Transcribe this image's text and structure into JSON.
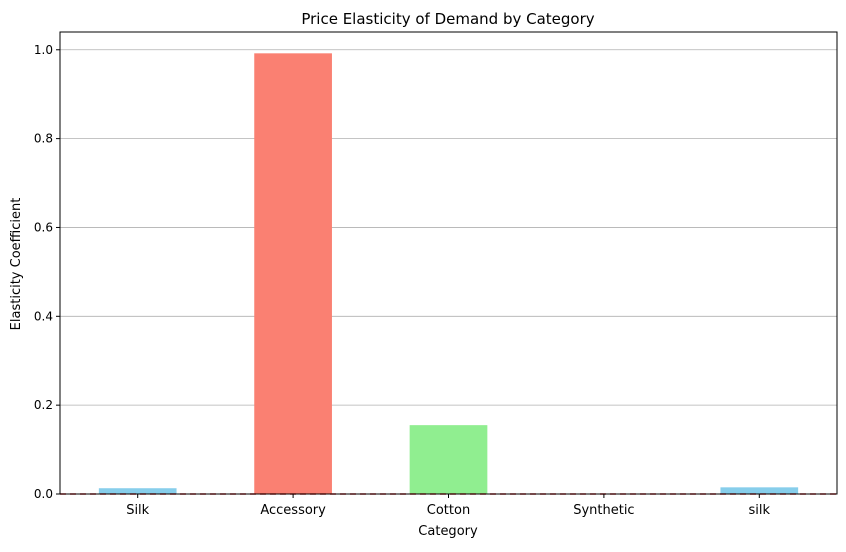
{
  "chart_data": {
    "type": "bar",
    "title": "Price Elasticity of Demand by Category",
    "xlabel": "Category",
    "ylabel": "Elasticity Coefficient",
    "categories": [
      "Silk",
      "Accessory",
      "Cotton",
      "Synthetic",
      "silk"
    ],
    "values": [
      0.013,
      0.992,
      0.155,
      0.0,
      0.015
    ],
    "colors": [
      "#87ceeb",
      "#fa8072",
      "#90ee90",
      "#87ceeb",
      "#87ceeb"
    ],
    "ylim": [
      0,
      1.04
    ],
    "yticks": [
      "0.0",
      "0.2",
      "0.4",
      "0.6",
      "0.8",
      "1.0"
    ],
    "grid": "y",
    "reference_line": {
      "value": 0,
      "color": "#d62728",
      "style": "dashed"
    }
  }
}
